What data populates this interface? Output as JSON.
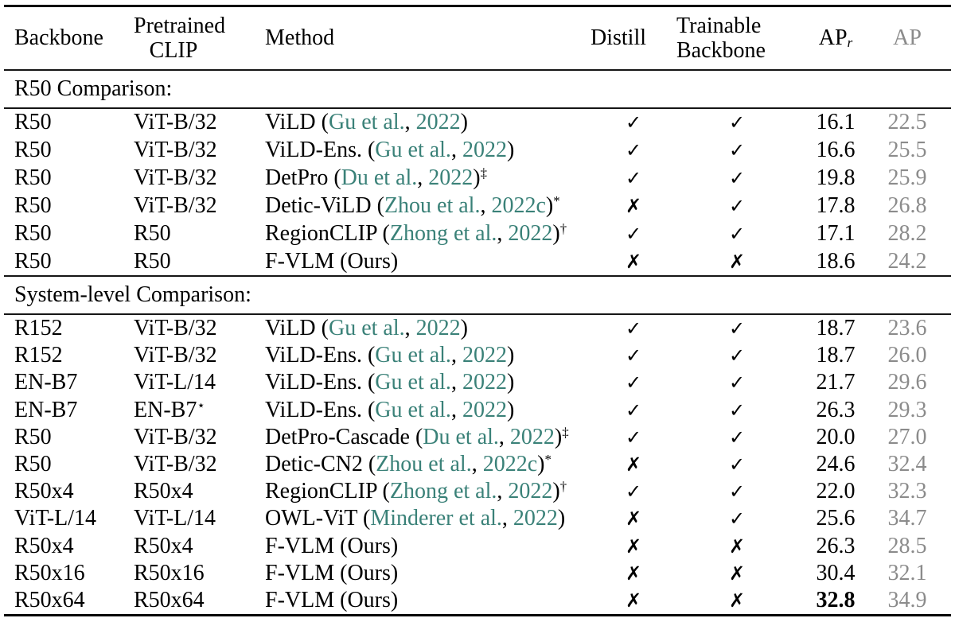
{
  "table": {
    "columns": {
      "backbone": "Backbone",
      "clip_line1": "Pretrained",
      "clip_line2": "CLIP",
      "method": "Method",
      "distill": "Distill",
      "trainable_line1": "Trainable",
      "trainable_line2": "Backbone",
      "apr_base": "AP",
      "apr_sub": "r",
      "ap": "AP"
    },
    "glyphs": {
      "check": "✓",
      "cross": "✗"
    },
    "colors": {
      "citation": "#3a8178",
      "muted": "#8b8b8b"
    },
    "sections": [
      {
        "label": "R50 Comparison:",
        "rows": [
          {
            "backbone": "R50",
            "clip": "ViT-B/32",
            "clip_sup": "",
            "method": "ViLD",
            "cite_author": "Gu et al.",
            "cite_year": "2022",
            "method_sup": "",
            "distill": true,
            "trainable": true,
            "apr": "16.1",
            "ap": "22.5",
            "apr_bold": false
          },
          {
            "backbone": "R50",
            "clip": "ViT-B/32",
            "clip_sup": "",
            "method": "ViLD-Ens.",
            "cite_author": "Gu et al.",
            "cite_year": "2022",
            "method_sup": "",
            "distill": true,
            "trainable": true,
            "apr": "16.6",
            "ap": "25.5",
            "apr_bold": false
          },
          {
            "backbone": "R50",
            "clip": "ViT-B/32",
            "clip_sup": "",
            "method": "DetPro",
            "cite_author": "Du et al.",
            "cite_year": "2022",
            "method_sup": "‡",
            "distill": true,
            "trainable": true,
            "apr": "19.8",
            "ap": "25.9",
            "apr_bold": false
          },
          {
            "backbone": "R50",
            "clip": "ViT-B/32",
            "clip_sup": "",
            "method": "Detic-ViLD",
            "cite_author": "Zhou et al.",
            "cite_year": "2022c",
            "method_sup": "*",
            "distill": false,
            "trainable": true,
            "apr": "17.8",
            "ap": "26.8",
            "apr_bold": false
          },
          {
            "backbone": "R50",
            "clip": "R50",
            "clip_sup": "",
            "method": "RegionCLIP",
            "cite_author": "Zhong et al.",
            "cite_year": "2022",
            "method_sup": "†",
            "distill": true,
            "trainable": true,
            "apr": "17.1",
            "ap": "28.2",
            "apr_bold": false
          },
          {
            "backbone": "R50",
            "clip": "R50",
            "clip_sup": "",
            "method": "F-VLM (Ours)",
            "cite_author": null,
            "cite_year": null,
            "method_sup": "",
            "distill": false,
            "trainable": false,
            "apr": "18.6",
            "ap": "24.2",
            "apr_bold": false
          }
        ]
      },
      {
        "label": "System-level Comparison:",
        "rows": [
          {
            "backbone": "R152",
            "clip": "ViT-B/32",
            "clip_sup": "",
            "method": "ViLD",
            "cite_author": "Gu et al.",
            "cite_year": "2022",
            "method_sup": "",
            "distill": true,
            "trainable": true,
            "apr": "18.7",
            "ap": "23.6",
            "apr_bold": false
          },
          {
            "backbone": "R152",
            "clip": "ViT-B/32",
            "clip_sup": "",
            "method": "ViLD-Ens.",
            "cite_author": "Gu et al.",
            "cite_year": "2022",
            "method_sup": "",
            "distill": true,
            "trainable": true,
            "apr": "18.7",
            "ap": "26.0",
            "apr_bold": false
          },
          {
            "backbone": "EN-B7",
            "clip": "ViT-L/14",
            "clip_sup": "",
            "method": "ViLD-Ens.",
            "cite_author": "Gu et al.",
            "cite_year": "2022",
            "method_sup": "",
            "distill": true,
            "trainable": true,
            "apr": "21.7",
            "ap": "29.6",
            "apr_bold": false
          },
          {
            "backbone": "EN-B7",
            "clip": "EN-B7",
            "clip_sup": "⋆",
            "method": "ViLD-Ens.",
            "cite_author": "Gu et al.",
            "cite_year": "2022",
            "method_sup": "",
            "distill": true,
            "trainable": true,
            "apr": "26.3",
            "ap": "29.3",
            "apr_bold": false
          },
          {
            "backbone": "R50",
            "clip": "ViT-B/32",
            "clip_sup": "",
            "method": "DetPro-Cascade",
            "cite_author": "Du et al.",
            "cite_year": "2022",
            "method_sup": "‡",
            "distill": true,
            "trainable": true,
            "apr": "20.0",
            "ap": "27.0",
            "apr_bold": false
          },
          {
            "backbone": "R50",
            "clip": "ViT-B/32",
            "clip_sup": "",
            "method": "Detic-CN2",
            "cite_author": "Zhou et al.",
            "cite_year": "2022c",
            "method_sup": "*",
            "distill": false,
            "trainable": true,
            "apr": "24.6",
            "ap": "32.4",
            "apr_bold": false
          },
          {
            "backbone": "R50x4",
            "clip": "R50x4",
            "clip_sup": "",
            "method": "RegionCLIP",
            "cite_author": "Zhong et al.",
            "cite_year": "2022",
            "method_sup": "†",
            "distill": true,
            "trainable": true,
            "apr": "22.0",
            "ap": "32.3",
            "apr_bold": false
          },
          {
            "backbone": "ViT-L/14",
            "clip": "ViT-L/14",
            "clip_sup": "",
            "method": "OWL-ViT",
            "cite_author": "Minderer et al.",
            "cite_year": "2022",
            "method_sup": "",
            "distill": false,
            "trainable": true,
            "apr": "25.6",
            "ap": "34.7",
            "apr_bold": false
          },
          {
            "backbone": "R50x4",
            "clip": "R50x4",
            "clip_sup": "",
            "method": "F-VLM (Ours)",
            "cite_author": null,
            "cite_year": null,
            "method_sup": "",
            "distill": false,
            "trainable": false,
            "apr": "26.3",
            "ap": "28.5",
            "apr_bold": false
          },
          {
            "backbone": "R50x16",
            "clip": "R50x16",
            "clip_sup": "",
            "method": "F-VLM (Ours)",
            "cite_author": null,
            "cite_year": null,
            "method_sup": "",
            "distill": false,
            "trainable": false,
            "apr": "30.4",
            "ap": "32.1",
            "apr_bold": false
          },
          {
            "backbone": "R50x64",
            "clip": "R50x64",
            "clip_sup": "",
            "method": "F-VLM (Ours)",
            "cite_author": null,
            "cite_year": null,
            "method_sup": "",
            "distill": false,
            "trainable": false,
            "apr": "32.8",
            "ap": "34.9",
            "apr_bold": true
          }
        ]
      }
    ]
  }
}
